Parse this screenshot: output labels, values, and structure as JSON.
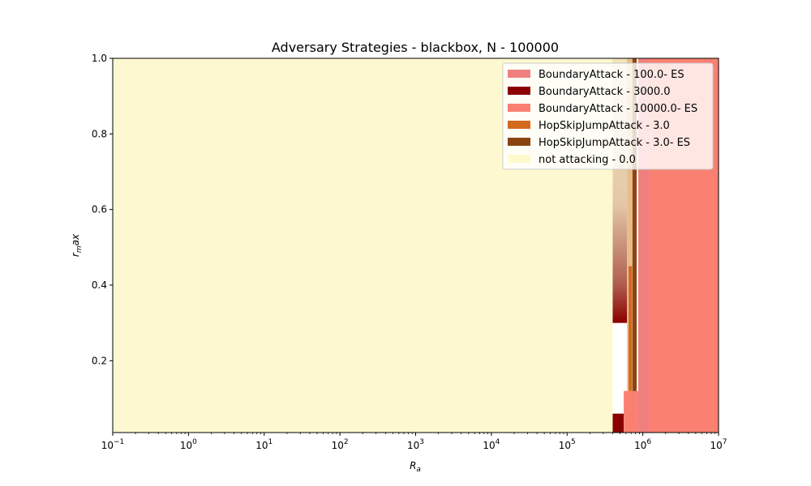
{
  "chart_data": {
    "type": "heatmap",
    "title": "Adversary Strategies - blackbox, N - 100000",
    "xlabel_base": "R",
    "xlabel_sub": "a",
    "ylabel_base": "r",
    "ylabel_sub": "m",
    "ylabel_rest": "ax",
    "x_scale": "log",
    "xlim": [
      0.1,
      10000000
    ],
    "ylim": [
      0.01,
      1.0
    ],
    "x_ticks": [
      {
        "value": 0.1,
        "base": "10",
        "exp": "−1"
      },
      {
        "value": 1,
        "base": "10",
        "exp": "0"
      },
      {
        "value": 10,
        "base": "10",
        "exp": "1"
      },
      {
        "value": 100,
        "base": "10",
        "exp": "2"
      },
      {
        "value": 1000,
        "base": "10",
        "exp": "3"
      },
      {
        "value": 10000,
        "base": "10",
        "exp": "4"
      },
      {
        "value": 100000,
        "base": "10",
        "exp": "5"
      },
      {
        "value": 1000000,
        "base": "10",
        "exp": "6"
      },
      {
        "value": 10000000,
        "base": "10",
        "exp": "7"
      }
    ],
    "y_ticks": [
      {
        "value": 0.2,
        "label": "0.2"
      },
      {
        "value": 0.4,
        "label": "0.4"
      },
      {
        "value": 0.6,
        "label": "0.6"
      },
      {
        "value": 0.8,
        "label": "0.8"
      },
      {
        "value": 1.0,
        "label": "1.0"
      }
    ],
    "legend_position": "top-right",
    "series": [
      {
        "name": "BoundaryAttack - 100.0- ES",
        "color": "#f08080"
      },
      {
        "name": "BoundaryAttack - 3000.0",
        "color": "#8b0000"
      },
      {
        "name": "BoundaryAttack - 10000.0- ES",
        "color": "#fa8072"
      },
      {
        "name": "HopSkipJumpAttack - 3.0",
        "color": "#d2691e"
      },
      {
        "name": "HopSkipJumpAttack - 3.0- ES",
        "color": "#8b4513"
      },
      {
        "name": "not attacking - 0.0",
        "color": "#fffacd"
      }
    ],
    "regions": [
      {
        "strategy": "not attacking - 0.0",
        "x": [
          0.1,
          400000
        ],
        "y": [
          0.01,
          1.0
        ],
        "color": "#fdf8cf"
      },
      {
        "strategy": "not attacking - 0.0",
        "x": [
          400000,
          620000
        ],
        "y": [
          0.3,
          1.0
        ],
        "color": "#f3e3bb"
      },
      {
        "strategy": "HopSkipJumpAttack - 3.0",
        "x": [
          620000,
          730000
        ],
        "y": [
          0.12,
          1.0
        ],
        "color": "#e8bc8a"
      },
      {
        "strategy": "HopSkipJumpAttack - 3.0",
        "x": [
          650000,
          720000
        ],
        "y": [
          0.12,
          0.45
        ],
        "color": "#d2691e"
      },
      {
        "strategy": "HopSkipJumpAttack - 3.0- ES",
        "x": [
          730000,
          830000
        ],
        "y": [
          0.06,
          1.0
        ],
        "color": "#8b4513"
      },
      {
        "strategy": "BoundaryAttack - 3000.0",
        "x": [
          400000,
          560000
        ],
        "y": [
          0.01,
          0.06
        ],
        "color": "#8b0000"
      },
      {
        "strategy": "BoundaryAttack - 100.0- ES",
        "x": [
          870000,
          1200000
        ],
        "y": [
          0.01,
          1.0
        ],
        "color": "#f08080"
      },
      {
        "strategy": "BoundaryAttack - 10000.0- ES",
        "x": [
          1200000,
          10000000
        ],
        "y": [
          0.01,
          1.0
        ],
        "color": "#fa8072"
      },
      {
        "strategy": "BoundaryAttack - 10000.0- ES",
        "x": [
          560000,
          870000
        ],
        "y": [
          0.01,
          0.12
        ],
        "color": "#fa8072"
      }
    ]
  }
}
